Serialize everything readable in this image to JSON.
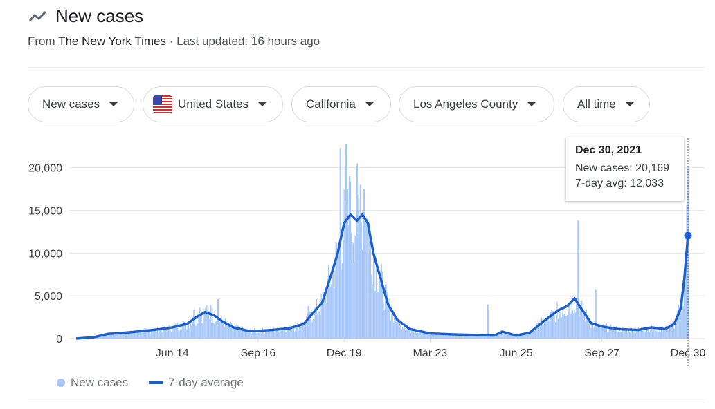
{
  "header": {
    "title": "New cases",
    "source_prefix": "From",
    "source_name": "The New York Times",
    "updated": "· Last updated: 16 hours ago"
  },
  "filters": [
    "New cases",
    "United States",
    "California",
    "Los Angeles County",
    "All time"
  ],
  "tooltip": {
    "date": "Dec 30, 2021",
    "cases_line": "New cases: 20,169",
    "avg_line": "7-day avg: 12,033"
  },
  "legend": {
    "bars": "New cases",
    "line": "7-day average"
  },
  "colors": {
    "bars": "#a8c7fa",
    "line": "#1a5fd0",
    "grid": "#e8eaed"
  },
  "chart_data": {
    "type": "bar",
    "title": "",
    "xlabel": "",
    "ylabel": "",
    "ylim": [
      0,
      22800
    ],
    "yticks": [
      0,
      5000,
      10000,
      15000,
      20000
    ],
    "ytick_labels": [
      "0",
      "5,000",
      "10,000",
      "15,000",
      "20,000"
    ],
    "xticks": [
      {
        "date": "2020-06-14",
        "label": "Jun 14"
      },
      {
        "date": "2020-09-16",
        "label": "Sep 16"
      },
      {
        "date": "2020-12-19",
        "label": "Dec 19"
      },
      {
        "date": "2021-03-23",
        "label": "Mar 23"
      },
      {
        "date": "2021-06-25",
        "label": "Jun 25"
      },
      {
        "date": "2021-09-27",
        "label": "Sep 27"
      },
      {
        "date": "2021-12-30",
        "label": "Dec 30"
      }
    ],
    "x_start": "2020-03-01",
    "x_end": "2021-12-30",
    "series": [
      {
        "name": "7-day average",
        "points": [
          [
            "2020-03-01",
            0
          ],
          [
            "2020-03-20",
            150
          ],
          [
            "2020-04-05",
            550
          ],
          [
            "2020-04-25",
            700
          ],
          [
            "2020-05-15",
            900
          ],
          [
            "2020-06-01",
            1100
          ],
          [
            "2020-06-14",
            1300
          ],
          [
            "2020-06-30",
            1700
          ],
          [
            "2020-07-12",
            2600
          ],
          [
            "2020-07-20",
            3100
          ],
          [
            "2020-07-30",
            2700
          ],
          [
            "2020-08-08",
            2000
          ],
          [
            "2020-08-20",
            1300
          ],
          [
            "2020-09-05",
            900
          ],
          [
            "2020-09-16",
            900
          ],
          [
            "2020-10-01",
            1000
          ],
          [
            "2020-10-20",
            1200
          ],
          [
            "2020-11-05",
            1700
          ],
          [
            "2020-11-15",
            3000
          ],
          [
            "2020-11-25",
            4200
          ],
          [
            "2020-12-05",
            7500
          ],
          [
            "2020-12-12",
            10000
          ],
          [
            "2020-12-19",
            13500
          ],
          [
            "2020-12-26",
            14500
          ],
          [
            "2021-01-02",
            13800
          ],
          [
            "2021-01-08",
            14500
          ],
          [
            "2021-01-14",
            13500
          ],
          [
            "2021-01-20",
            10000
          ],
          [
            "2021-01-28",
            7000
          ],
          [
            "2021-02-05",
            4000
          ],
          [
            "2021-02-15",
            2200
          ],
          [
            "2021-03-01",
            1100
          ],
          [
            "2021-03-23",
            600
          ],
          [
            "2021-04-15",
            500
          ],
          [
            "2021-05-15",
            400
          ],
          [
            "2021-06-01",
            350
          ],
          [
            "2021-06-10",
            800
          ],
          [
            "2021-06-25",
            350
          ],
          [
            "2021-07-10",
            700
          ],
          [
            "2021-07-25",
            2000
          ],
          [
            "2021-08-10",
            3300
          ],
          [
            "2021-08-20",
            3800
          ],
          [
            "2021-08-28",
            4700
          ],
          [
            "2021-09-05",
            3400
          ],
          [
            "2021-09-15",
            1800
          ],
          [
            "2021-09-27",
            1400
          ],
          [
            "2021-10-15",
            1100
          ],
          [
            "2021-11-05",
            1000
          ],
          [
            "2021-11-20",
            1300
          ],
          [
            "2021-12-05",
            1100
          ],
          [
            "2021-12-15",
            1700
          ],
          [
            "2021-12-22",
            3500
          ],
          [
            "2021-12-26",
            7000
          ],
          [
            "2021-12-30",
            12033
          ]
        ]
      },
      {
        "name": "New cases",
        "spikes": [
          [
            "2020-07-08",
            3400
          ],
          [
            "2020-07-14",
            3600
          ],
          [
            "2020-07-26",
            3900
          ],
          [
            "2020-08-03",
            4600
          ],
          [
            "2020-11-10",
            3800
          ],
          [
            "2020-12-15",
            22300
          ],
          [
            "2020-12-21",
            22800
          ],
          [
            "2020-12-25",
            19000
          ],
          [
            "2021-01-02",
            20500
          ],
          [
            "2021-01-06",
            18000
          ],
          [
            "2021-01-10",
            17500
          ],
          [
            "2021-05-25",
            4000
          ],
          [
            "2021-09-01",
            13800
          ],
          [
            "2021-09-20",
            5700
          ],
          [
            "2021-12-29",
            15700
          ],
          [
            "2021-12-30",
            20169
          ]
        ]
      }
    ]
  }
}
